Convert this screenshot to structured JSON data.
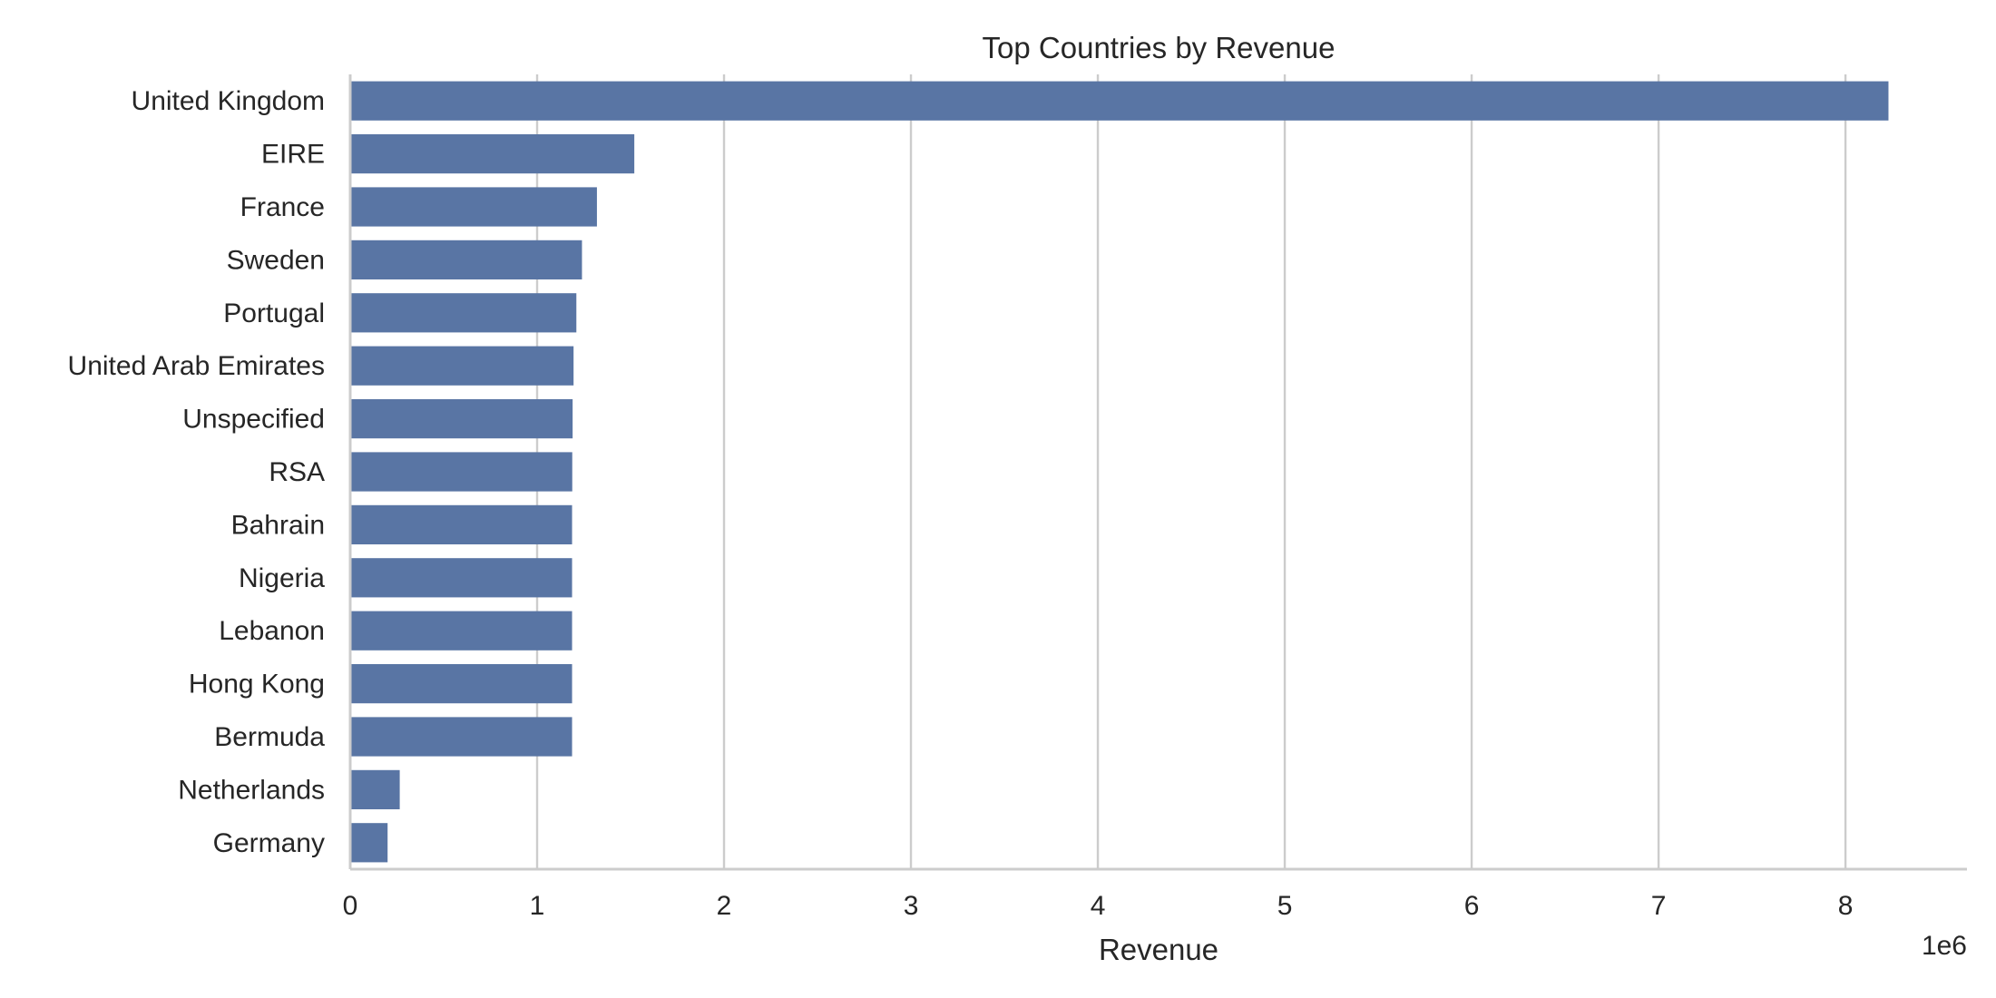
{
  "chart_data": {
    "type": "bar",
    "orientation": "horizontal",
    "title": "Top Countries by Revenue",
    "xlabel": "Revenue",
    "ylabel": "",
    "x_scale_label": "1e6",
    "x_scale": 1000000,
    "xlim": [
      0,
      8.65
    ],
    "xticks": [
      0,
      1,
      2,
      3,
      4,
      5,
      6,
      7,
      8
    ],
    "grid": "vertical",
    "bar_color": "#5975a4",
    "categories": [
      "United Kingdom",
      "EIRE",
      "France",
      "Sweden",
      "Portugal",
      "United Arab Emirates",
      "Unspecified",
      "RSA",
      "Bahrain",
      "Nigeria",
      "Lebanon",
      "Hong Kong",
      "Bermuda",
      "Netherlands",
      "Germany"
    ],
    "values": [
      8230000,
      1520000,
      1320000,
      1240000,
      1210000,
      1195000,
      1190000,
      1188000,
      1187000,
      1187000,
      1187000,
      1187000,
      1187000,
      265000,
      200000
    ]
  }
}
